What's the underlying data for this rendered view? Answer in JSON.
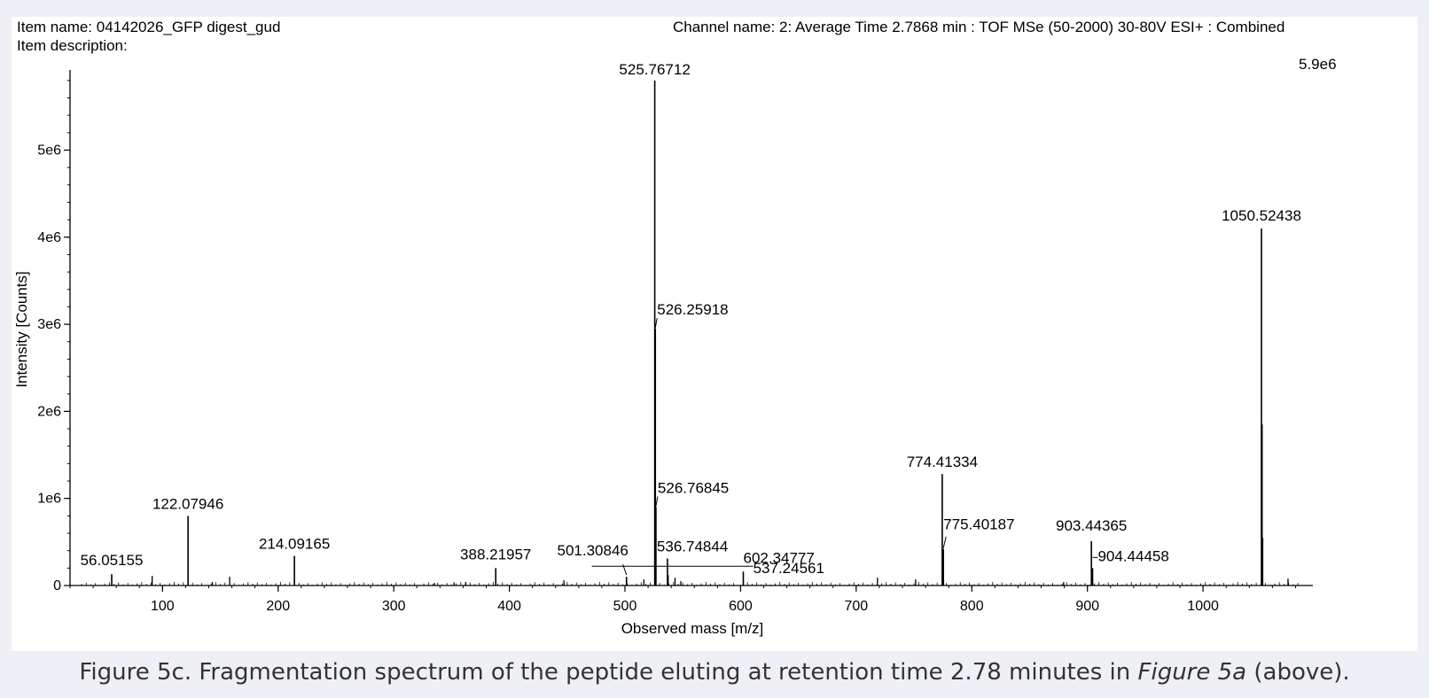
{
  "header": {
    "item_name": "Item name: 04142026_GFP digest_gud",
    "item_description": "Item description:",
    "channel_name": "Channel name: 2: Average Time 2.7868 min : TOF MSe (50-2000) 30-80V ESI+ : Combined",
    "max_intensity": "5.9e6"
  },
  "caption": {
    "prefix": "Figure 5c. Fragmentation spectrum of the peptide eluting at retention time 2.78 minutes in ",
    "ref": "Figure 5a",
    "suffix": " (above)."
  },
  "chart_data": {
    "type": "bar",
    "xlabel": "Observed mass [m/z]",
    "ylabel": "Intensity [Counts]",
    "xlim": [
      20,
      1095
    ],
    "ylim": [
      0,
      5900000.0
    ],
    "x_ticks": [
      100,
      200,
      300,
      400,
      500,
      600,
      700,
      800,
      900,
      1000
    ],
    "y_ticks": [
      {
        "value": 0,
        "label": "0"
      },
      {
        "value": 1000000,
        "label": "1e6"
      },
      {
        "value": 2000000,
        "label": "2e6"
      },
      {
        "value": 3000000,
        "label": "3e6"
      },
      {
        "value": 4000000,
        "label": "4e6"
      },
      {
        "value": 5000000,
        "label": "5e6"
      }
    ],
    "grid": false,
    "peaks": [
      {
        "mz": 56.05155,
        "intensity": 130000,
        "label": "56.05155"
      },
      {
        "mz": 122.07946,
        "intensity": 800000,
        "label": "122.07946"
      },
      {
        "mz": 214.09165,
        "intensity": 340000,
        "label": "214.09165"
      },
      {
        "mz": 388.21957,
        "intensity": 200000,
        "label": "388.21957"
      },
      {
        "mz": 501.30846,
        "intensity": 100000,
        "label": "501.30846"
      },
      {
        "mz": 525.76712,
        "intensity": 5800000,
        "label": "525.76712"
      },
      {
        "mz": 526.25918,
        "intensity": 2950000,
        "label": "526.25918"
      },
      {
        "mz": 526.76845,
        "intensity": 900000,
        "label": "526.76845"
      },
      {
        "mz": 536.74844,
        "intensity": 310000,
        "label": "536.74844"
      },
      {
        "mz": 537.24561,
        "intensity": 120000,
        "label": "537.24561"
      },
      {
        "mz": 602.34777,
        "intensity": 160000,
        "label": "602.34777"
      },
      {
        "mz": 774.41334,
        "intensity": 1280000,
        "label": "774.41334"
      },
      {
        "mz": 775.40187,
        "intensity": 420000,
        "label": "775.40187"
      },
      {
        "mz": 903.44365,
        "intensity": 510000,
        "label": "903.44365"
      },
      {
        "mz": 904.44458,
        "intensity": 200000,
        "label": "904.44458"
      },
      {
        "mz": 1050.52438,
        "intensity": 4100000,
        "label": "1050.52438"
      },
      {
        "mz": 1051.02,
        "intensity": 1850000,
        "label": ""
      },
      {
        "mz": 1051.52,
        "intensity": 550000,
        "label": ""
      }
    ],
    "minor_peaks": [
      {
        "mz": 91.05,
        "intensity": 110000
      },
      {
        "mz": 143.1,
        "intensity": 40000
      },
      {
        "mz": 158.09,
        "intensity": 100000
      },
      {
        "mz": 335.2,
        "intensity": 30000
      },
      {
        "mz": 352.2,
        "intensity": 35000
      },
      {
        "mz": 362.2,
        "intensity": 40000
      },
      {
        "mz": 447.2,
        "intensity": 60000
      },
      {
        "mz": 516.3,
        "intensity": 70000
      },
      {
        "mz": 543.3,
        "intensity": 90000
      },
      {
        "mz": 548.3,
        "intensity": 50000
      },
      {
        "mz": 718.4,
        "intensity": 90000
      },
      {
        "mz": 751.4,
        "intensity": 70000
      },
      {
        "mz": 879.4,
        "intensity": 40000
      },
      {
        "mz": 1073.5,
        "intensity": 80000
      }
    ]
  }
}
